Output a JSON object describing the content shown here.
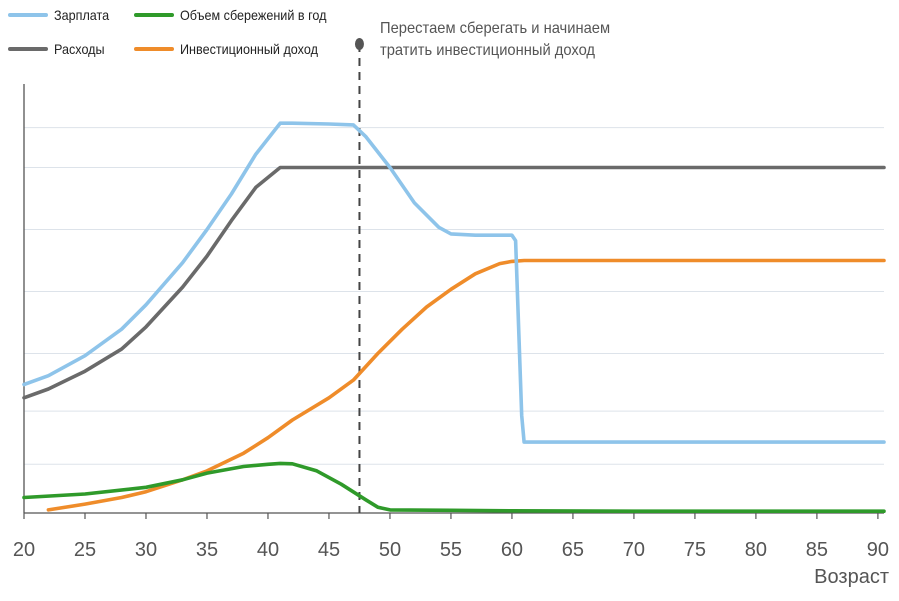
{
  "chart_data": {
    "type": "line",
    "xlabel": "Возраст",
    "xlim": [
      20,
      90.5
    ],
    "ylim": [
      0,
      100
    ],
    "xticks": [
      20,
      25,
      30,
      35,
      40,
      45,
      50,
      55,
      60,
      65,
      70,
      75,
      80,
      85,
      90
    ],
    "grid": "horizontal",
    "legend_position": "top-left",
    "annotation": {
      "x": 47.5,
      "lines": [
        "Перестаем сберегать и начинаем",
        "тратить инвестиционный доход"
      ]
    },
    "series": [
      {
        "name": "Зарплата",
        "color": "#8ec4ea",
        "points": [
          [
            20,
            29
          ],
          [
            22,
            31
          ],
          [
            25,
            35.5
          ],
          [
            28,
            41.5
          ],
          [
            30,
            47
          ],
          [
            33,
            56.5
          ],
          [
            35,
            64
          ],
          [
            37,
            72
          ],
          [
            39,
            81
          ],
          [
            41,
            88
          ],
          [
            42,
            88
          ],
          [
            45,
            87.8
          ],
          [
            47,
            87.6
          ],
          [
            48,
            85
          ],
          [
            50,
            78
          ],
          [
            52,
            70
          ],
          [
            54,
            64.5
          ],
          [
            55,
            63
          ],
          [
            57,
            62.7
          ],
          [
            60,
            62.7
          ],
          [
            60.3,
            61.5
          ],
          [
            60.8,
            22
          ],
          [
            61,
            16
          ],
          [
            65,
            16
          ],
          [
            70,
            16
          ],
          [
            75,
            16
          ],
          [
            80,
            16
          ],
          [
            85,
            16
          ],
          [
            90.5,
            16
          ]
        ]
      },
      {
        "name": "Расходы",
        "color": "#6a6a6a",
        "points": [
          [
            20,
            26
          ],
          [
            22,
            28
          ],
          [
            25,
            32
          ],
          [
            28,
            37
          ],
          [
            30,
            42
          ],
          [
            33,
            51
          ],
          [
            35,
            58
          ],
          [
            37,
            66
          ],
          [
            39,
            73.5
          ],
          [
            41,
            78
          ],
          [
            42,
            78
          ],
          [
            50,
            78
          ],
          [
            60,
            78
          ],
          [
            70,
            78
          ],
          [
            80,
            78
          ],
          [
            90.5,
            78
          ]
        ]
      },
      {
        "name": "Объем сбережений в год",
        "color": "#2f9a2a",
        "points": [
          [
            20,
            3.5
          ],
          [
            25,
            4.3
          ],
          [
            30,
            5.8
          ],
          [
            33,
            7.5
          ],
          [
            35,
            9
          ],
          [
            38,
            10.5
          ],
          [
            40,
            11
          ],
          [
            41,
            11.2
          ],
          [
            42,
            11.1
          ],
          [
            44,
            9.5
          ],
          [
            46,
            6.5
          ],
          [
            48,
            3
          ],
          [
            49,
            1.3
          ],
          [
            50,
            0.7
          ],
          [
            55,
            0.6
          ],
          [
            60,
            0.5
          ],
          [
            70,
            0.4
          ],
          [
            80,
            0.4
          ],
          [
            90.5,
            0.4
          ]
        ]
      },
      {
        "name": "Инвестиционный доход",
        "color": "#ef8c2a",
        "points": [
          [
            22,
            0.7
          ],
          [
            25,
            2
          ],
          [
            28,
            3.5
          ],
          [
            30,
            4.8
          ],
          [
            33,
            7.5
          ],
          [
            35,
            9.5
          ],
          [
            38,
            13.5
          ],
          [
            40,
            17
          ],
          [
            42,
            21
          ],
          [
            45,
            26
          ],
          [
            47,
            30
          ],
          [
            49,
            36
          ],
          [
            51,
            41.5
          ],
          [
            53,
            46.5
          ],
          [
            55,
            50.5
          ],
          [
            57,
            54
          ],
          [
            59,
            56.3
          ],
          [
            60,
            56.8
          ],
          [
            61,
            57
          ],
          [
            65,
            57
          ],
          [
            70,
            57
          ],
          [
            75,
            57
          ],
          [
            80,
            57
          ],
          [
            85,
            57
          ],
          [
            90.5,
            57
          ]
        ]
      }
    ]
  }
}
